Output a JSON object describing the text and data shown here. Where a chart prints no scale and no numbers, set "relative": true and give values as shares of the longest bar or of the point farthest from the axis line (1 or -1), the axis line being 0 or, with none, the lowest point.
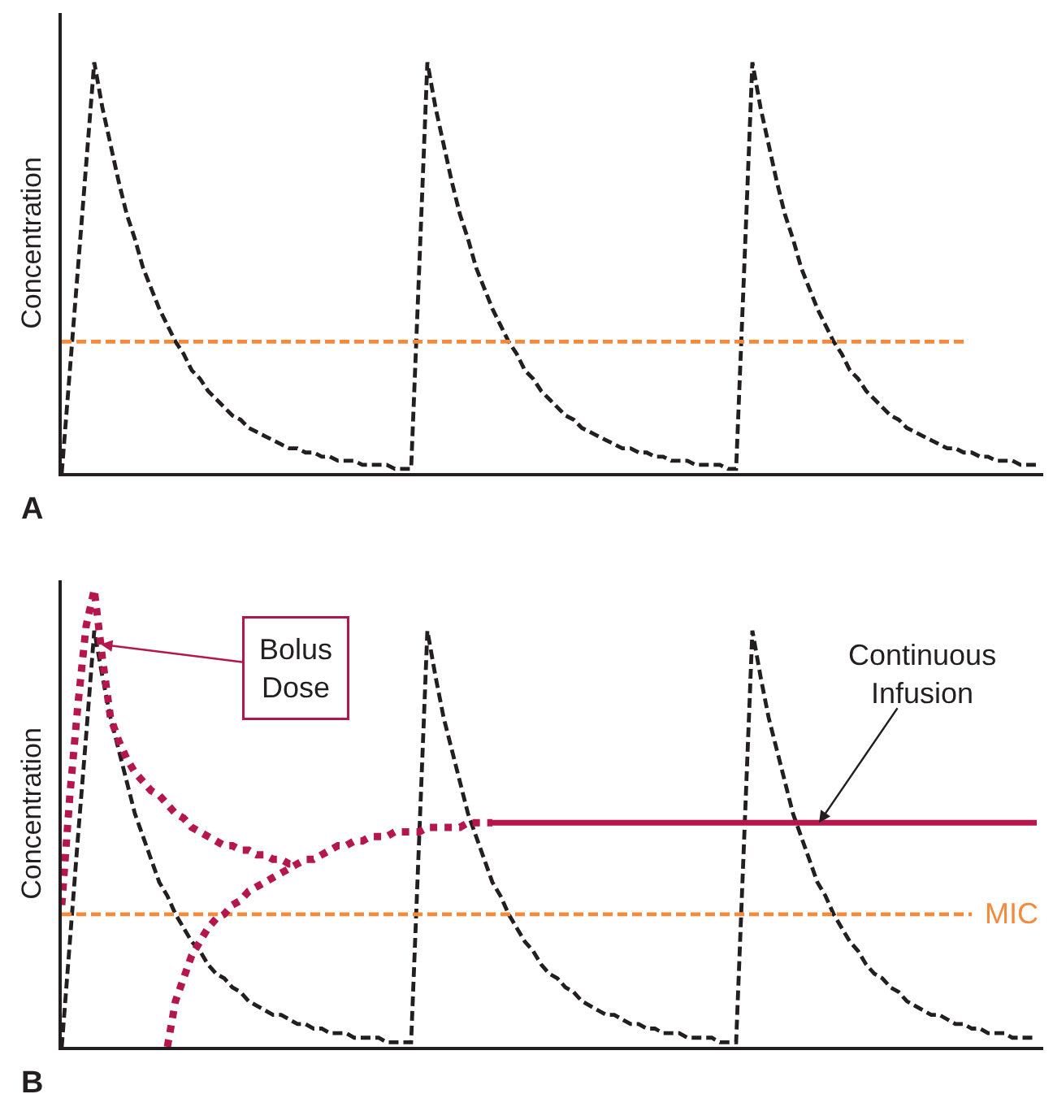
{
  "chart_data": [
    {
      "type": "line",
      "title": "A",
      "ylabel": "Concentration",
      "relative": true,
      "tick_labels": false,
      "categories": [
        null,
        null,
        null,
        null,
        null,
        null,
        null,
        null,
        null,
        null,
        null,
        null,
        null,
        null,
        null,
        null,
        null,
        null,
        null,
        null,
        null,
        null,
        null,
        null,
        null,
        null,
        null,
        null,
        null,
        null,
        null,
        null,
        null,
        null,
        null,
        null,
        null,
        null,
        null,
        null,
        null,
        null,
        null,
        null,
        null,
        null,
        null,
        null,
        null,
        null,
        null,
        null,
        null,
        null,
        null,
        null,
        null,
        null,
        null,
        null,
        null,
        null,
        null,
        null,
        null,
        null,
        null,
        null,
        null,
        null,
        null,
        null,
        null,
        null,
        null,
        null,
        null,
        null,
        null,
        null,
        null,
        null,
        null,
        null,
        null,
        null,
        null,
        null,
        null,
        null,
        null,
        null,
        null,
        null,
        null,
        null,
        null,
        null,
        null,
        null,
        null,
        null,
        null,
        null,
        null,
        null,
        null,
        null,
        null,
        null,
        null,
        null,
        null,
        null,
        null,
        null,
        null,
        null,
        null,
        null,
        null
      ],
      "series": [
        {
          "color": "#231f20",
          "line_style": "dashed",
          "values": [
            0,
            0.25,
            0.5,
            0.75,
            1.0,
            0.89,
            0.8,
            0.71,
            0.63,
            0.57,
            0.5,
            0.45,
            0.4,
            0.36,
            0.32,
            0.29,
            0.25,
            0.23,
            0.2,
            0.18,
            0.16,
            0.14,
            0.13,
            0.11,
            0.1,
            0.09,
            0.08,
            0.07,
            0.06,
            0.06,
            0.05,
            0.05,
            0.04,
            0.04,
            0.03,
            0.03,
            0.03,
            0.02,
            0.02,
            0.02,
            0.02,
            0.01,
            0.01,
            0.01,
            0.5,
            1.0,
            0.89,
            0.8,
            0.71,
            0.63,
            0.57,
            0.5,
            0.45,
            0.4,
            0.36,
            0.32,
            0.29,
            0.25,
            0.23,
            0.2,
            0.18,
            0.16,
            0.14,
            0.13,
            0.11,
            0.1,
            0.09,
            0.08,
            0.07,
            0.06,
            0.06,
            0.05,
            0.05,
            0.04,
            0.04,
            0.03,
            0.03,
            0.03,
            0.02,
            0.02,
            0.02,
            0.02,
            0.01,
            0.01,
            0.5,
            1.0,
            0.89,
            0.8,
            0.71,
            0.63,
            0.57,
            0.5,
            0.45,
            0.4,
            0.36,
            0.32,
            0.29,
            0.25,
            0.23,
            0.2,
            0.18,
            0.16,
            0.14,
            0.13,
            0.11,
            0.1,
            0.09,
            0.08,
            0.07,
            0.06,
            0.06,
            0.05,
            0.05,
            0.04,
            0.04,
            0.03,
            0.03,
            0.03,
            0.02,
            0.02,
            0.02
          ]
        },
        {
          "color": "#f58a3c",
          "line_style": "dashed",
          "values": [
            0.32,
            0.32,
            0.32,
            0.32,
            0.32,
            0.32,
            0.32,
            0.32,
            0.32,
            0.32,
            0.32,
            0.32,
            0.32,
            0.32,
            0.32,
            0.32,
            0.32,
            0.32,
            0.32,
            0.32,
            0.32,
            0.32,
            0.32,
            0.32,
            0.32,
            0.32,
            0.32,
            0.32,
            0.32,
            0.32,
            0.32,
            0.32,
            0.32,
            0.32,
            0.32,
            0.32,
            0.32,
            0.32,
            0.32,
            0.32,
            0.32,
            0.32,
            0.32,
            0.32,
            0.32,
            0.32,
            0.32,
            0.32,
            0.32,
            0.32,
            0.32,
            0.32,
            0.32,
            0.32,
            0.32,
            0.32,
            0.32,
            0.32,
            0.32,
            0.32,
            0.32,
            0.32,
            0.32,
            0.32,
            0.32,
            0.32,
            0.32,
            0.32,
            0.32,
            0.32,
            0.32,
            0.32,
            0.32,
            0.32,
            0.32,
            0.32,
            0.32,
            0.32,
            0.32,
            0.32,
            0.32,
            0.32,
            0.32,
            0.32,
            0.32,
            0.32,
            0.32,
            0.32,
            0.32,
            0.32,
            0.32,
            0.32,
            0.32,
            0.32,
            0.32,
            0.32,
            0.32,
            0.32,
            0.32,
            0.32,
            0.32,
            0.32,
            0.32,
            0.32,
            0.32,
            0.32,
            0.32,
            0.32,
            0.32,
            0.32,
            0.32,
            0.32,
            null,
            null,
            null,
            null,
            null,
            null,
            null,
            null,
            null
          ]
        }
      ]
    },
    {
      "type": "line",
      "title": "B",
      "ylabel": "Concentration",
      "relative": true,
      "tick_labels": false,
      "categories": [
        null,
        null,
        null,
        null,
        null,
        null,
        null,
        null,
        null,
        null,
        null,
        null,
        null,
        null,
        null,
        null,
        null,
        null,
        null,
        null,
        null,
        null,
        null,
        null,
        null,
        null,
        null,
        null,
        null,
        null,
        null,
        null,
        null,
        null,
        null,
        null,
        null,
        null,
        null,
        null,
        null,
        null,
        null,
        null,
        null,
        null,
        null,
        null,
        null,
        null,
        null,
        null,
        null,
        null,
        null,
        null,
        null,
        null,
        null,
        null,
        null,
        null,
        null,
        null,
        null,
        null,
        null,
        null,
        null,
        null,
        null,
        null,
        null,
        null,
        null,
        null,
        null,
        null,
        null,
        null,
        null,
        null,
        null,
        null,
        null,
        null,
        null,
        null,
        null,
        null,
        null,
        null,
        null,
        null,
        null,
        null,
        null,
        null,
        null,
        null,
        null,
        null,
        null,
        null,
        null,
        null,
        null,
        null,
        null,
        null,
        null,
        null,
        null,
        null,
        null,
        null,
        null,
        null,
        null,
        null,
        null
      ],
      "annotations": [
        "Bolus\nDose",
        "Continuous\nInfusion"
      ],
      "series": [
        {
          "color": "#231f20",
          "line_style": "dashed",
          "values": [
            0,
            0.23,
            0.46,
            0.68,
            0.91,
            0.81,
            0.72,
            0.65,
            0.58,
            0.51,
            0.46,
            0.41,
            0.36,
            0.33,
            0.29,
            0.26,
            0.23,
            0.21,
            0.18,
            0.16,
            0.15,
            0.13,
            0.12,
            0.1,
            0.09,
            0.08,
            0.07,
            0.07,
            0.06,
            0.05,
            0.05,
            0.04,
            0.04,
            0.03,
            0.03,
            0.03,
            0.02,
            0.02,
            0.02,
            0.02,
            0.01,
            0.01,
            0.01,
            0.01,
            0.46,
            0.91,
            0.81,
            0.72,
            0.65,
            0.58,
            0.51,
            0.46,
            0.41,
            0.36,
            0.33,
            0.29,
            0.26,
            0.23,
            0.21,
            0.18,
            0.16,
            0.15,
            0.13,
            0.12,
            0.1,
            0.09,
            0.08,
            0.07,
            0.07,
            0.06,
            0.05,
            0.05,
            0.04,
            0.04,
            0.03,
            0.03,
            0.03,
            0.02,
            0.02,
            0.02,
            0.02,
            0.01,
            0.01,
            0.01,
            0.46,
            0.91,
            0.81,
            0.72,
            0.65,
            0.58,
            0.51,
            0.46,
            0.41,
            0.36,
            0.33,
            0.29,
            0.26,
            0.23,
            0.21,
            0.18,
            0.16,
            0.15,
            0.13,
            0.12,
            0.1,
            0.09,
            0.08,
            0.07,
            0.07,
            0.06,
            0.05,
            0.05,
            0.04,
            0.04,
            0.03,
            0.03,
            0.03,
            0.02,
            0.02,
            0.02,
            0.02
          ]
        },
        {
          "name": "MIC",
          "color": "#f58a3c",
          "line_style": "dashed",
          "values": [
            0.29,
            0.29,
            0.29,
            0.29,
            0.29,
            0.29,
            0.29,
            0.29,
            0.29,
            0.29,
            0.29,
            0.29,
            0.29,
            0.29,
            0.29,
            0.29,
            0.29,
            0.29,
            0.29,
            0.29,
            0.29,
            0.29,
            0.29,
            0.29,
            0.29,
            0.29,
            0.29,
            0.29,
            0.29,
            0.29,
            0.29,
            0.29,
            0.29,
            0.29,
            0.29,
            0.29,
            0.29,
            0.29,
            0.29,
            0.29,
            0.29,
            0.29,
            0.29,
            0.29,
            0.29,
            0.29,
            0.29,
            0.29,
            0.29,
            0.29,
            0.29,
            0.29,
            0.29,
            0.29,
            0.29,
            0.29,
            0.29,
            0.29,
            0.29,
            0.29,
            0.29,
            0.29,
            0.29,
            0.29,
            0.29,
            0.29,
            0.29,
            0.29,
            0.29,
            0.29,
            0.29,
            0.29,
            0.29,
            0.29,
            0.29,
            0.29,
            0.29,
            0.29,
            0.29,
            0.29,
            0.29,
            0.29,
            0.29,
            0.29,
            0.29,
            0.29,
            0.29,
            0.29,
            0.29,
            0.29,
            0.29,
            0.29,
            0.29,
            0.29,
            0.29,
            0.29,
            0.29,
            0.29,
            0.29,
            0.29,
            0.29,
            0.29,
            0.29,
            0.29,
            0.29,
            0.29,
            0.29,
            0.29,
            0.29,
            0.29,
            0.29,
            0.29,
            0.29,
            null,
            null,
            null,
            null,
            null,
            null,
            null,
            null
          ]
        },
        {
          "color": "#b5164b",
          "line_style": "dotted",
          "values": [
            0.31,
            0.55,
            0.75,
            0.92,
            1.0,
            0.85,
            0.72,
            0.67,
            0.63,
            0.6,
            0.58,
            0.56,
            0.55,
            0.53,
            0.51,
            0.5,
            0.48,
            0.47,
            0.46,
            0.45,
            0.44,
            0.44,
            0.43,
            0.43,
            0.42,
            0.42,
            0.41,
            0.41,
            0.4,
            0.4,
            null,
            null,
            null,
            null,
            null,
            null,
            null,
            null,
            null,
            null,
            null,
            null,
            null,
            null,
            null,
            null,
            null,
            null,
            null,
            null,
            null,
            null,
            null,
            null,
            null,
            null,
            null,
            null,
            null,
            null,
            null,
            null,
            null,
            null,
            null,
            null,
            null,
            null,
            null,
            null,
            null,
            null,
            null,
            null,
            null,
            null,
            null,
            null,
            null,
            null,
            null,
            null,
            null,
            null,
            null,
            null,
            null,
            null,
            null,
            null,
            null,
            null,
            null,
            null,
            null,
            null,
            null,
            null,
            null,
            null,
            null,
            null,
            null,
            null,
            null,
            null,
            null,
            null,
            null,
            null,
            null,
            null,
            null,
            null,
            null,
            null,
            null,
            null,
            null,
            null,
            null
          ]
        },
        {
          "color": "#b5164b",
          "line_style": "dotted",
          "values": [
            null,
            null,
            null,
            null,
            null,
            null,
            null,
            null,
            null,
            null,
            null,
            null,
            null,
            0.0,
            0.1,
            0.15,
            0.2,
            0.23,
            0.26,
            0.28,
            0.29,
            0.31,
            0.32,
            0.34,
            0.35,
            0.36,
            0.37,
            0.38,
            0.39,
            0.4,
            0.41,
            0.41,
            0.42,
            0.43,
            0.44,
            0.44,
            0.45,
            0.45,
            0.46,
            0.46,
            0.46,
            0.47,
            0.47,
            0.47,
            0.47,
            0.48,
            0.48,
            0.48,
            0.48,
            0.48,
            0.49,
            0.49,
            0.49,
            0.49,
            null,
            null,
            null,
            null,
            null,
            null,
            null,
            null,
            null,
            null,
            null,
            null,
            null,
            null,
            null,
            null,
            null,
            null,
            null,
            null,
            null,
            null,
            null,
            null,
            null,
            null,
            null,
            null,
            null,
            null,
            null,
            null,
            null,
            null,
            null,
            null,
            null,
            null,
            null,
            null,
            null,
            null,
            null,
            null,
            null,
            null,
            null,
            null,
            null,
            null,
            null,
            null,
            null,
            null,
            null,
            null,
            null,
            null,
            null,
            null,
            null,
            null,
            null,
            null,
            null,
            null,
            null
          ]
        },
        {
          "color": "#b5164b",
          "line_style": "solid",
          "values": [
            null,
            null,
            null,
            null,
            null,
            null,
            null,
            null,
            null,
            null,
            null,
            null,
            null,
            null,
            null,
            null,
            null,
            null,
            null,
            null,
            null,
            null,
            null,
            null,
            null,
            null,
            null,
            null,
            null,
            null,
            null,
            null,
            null,
            null,
            null,
            null,
            null,
            null,
            null,
            null,
            null,
            null,
            null,
            null,
            null,
            null,
            null,
            null,
            null,
            null,
            null,
            null,
            null,
            0.49,
            0.49,
            0.49,
            0.49,
            0.49,
            0.49,
            0.49,
            0.49,
            0.49,
            0.49,
            0.49,
            0.49,
            0.49,
            0.49,
            0.49,
            0.49,
            0.49,
            0.49,
            0.49,
            0.49,
            0.49,
            0.49,
            0.49,
            0.49,
            0.49,
            0.49,
            0.49,
            0.49,
            0.49,
            0.49,
            0.49,
            0.49,
            0.49,
            0.49,
            0.49,
            0.49,
            0.49,
            0.49,
            0.49,
            0.49,
            0.49,
            0.49,
            0.49,
            0.49,
            0.49,
            0.49,
            0.49,
            0.49,
            0.49,
            0.49,
            0.49,
            0.49,
            0.49,
            0.49,
            0.49,
            0.49,
            0.49,
            0.49,
            0.49,
            0.49,
            0.49,
            0.49,
            0.49,
            0.49,
            0.49,
            0.49,
            0.49,
            0.49
          ]
        }
      ]
    }
  ]
}
